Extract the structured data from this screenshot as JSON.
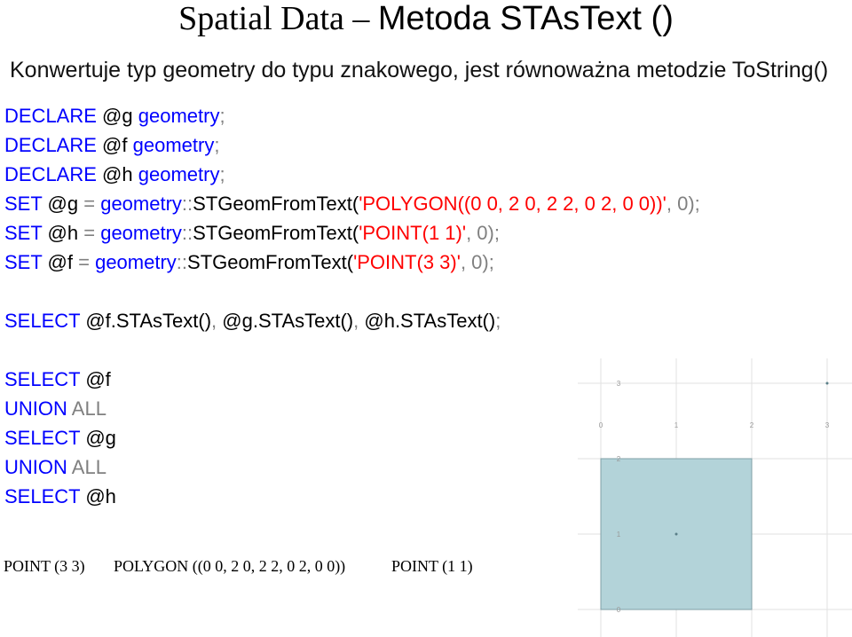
{
  "slide": {
    "title_part1": "Spatial Data – ",
    "title_part2": "Metoda STAsText ()",
    "subtitle": "Konwertuje typ geometry do typu znakowego, jest równoważna metodzie ToString()"
  },
  "code": {
    "line1": {
      "kw": "DECLARE",
      "var": "@g",
      "type": "geometry",
      "end": ";"
    },
    "line2": {
      "kw": "DECLARE",
      "var": "@f",
      "type": "geometry",
      "end": ";"
    },
    "line3": {
      "kw": "DECLARE",
      "var": "@h",
      "type": "geometry",
      "end": ";"
    },
    "line4": {
      "kw": "SET",
      "var": "@g",
      "eq": "=",
      "type": "geometry",
      "sep": "::",
      "method": "STGeomFromText(",
      "wkt": "'POLYGON((0 0, 2 0, 2 2, 0 2, 0 0))'",
      "rest": ", 0);"
    },
    "line5": {
      "kw": "SET",
      "var": "@h",
      "eq": "=",
      "type": "geometry",
      "sep": "::",
      "method": "STGeomFromText(",
      "wkt": "'POINT(1 1)'",
      "rest": ", 0);"
    },
    "line6": {
      "kw": "SET",
      "var": "@f",
      "eq": "=",
      "type": "geometry",
      "sep": "::",
      "method": "STGeomFromText(",
      "wkt": "'POINT(3 3)'",
      "rest": ", 0);"
    },
    "line7": {
      "kw": "SELECT",
      "a": "@f.STAsText()",
      "c1": ",",
      "b": "@g.STAsText()",
      "c2": ",",
      "c": "@h.STAsText()",
      "end": ";"
    },
    "union": [
      {
        "kw": "SELECT",
        "var": "@f"
      },
      {
        "kw": "UNION",
        "op": "ALL"
      },
      {
        "kw": "SELECT",
        "var": "@g"
      },
      {
        "kw": "UNION",
        "op": "ALL"
      },
      {
        "kw": "SELECT",
        "var": "@h"
      }
    ]
  },
  "results": {
    "col1": "POINT (3 3)",
    "col2": "POLYGON ((0 0, 2 0, 2 2, 0 2, 0 0))",
    "col3": "POINT (1 1)"
  },
  "spatial_viewer": {
    "x_ticks": [
      "0",
      "1",
      "2",
      "3"
    ],
    "y_ticks": [
      "3",
      "2",
      "1",
      "0"
    ],
    "polygon_fill": "#b3d3d9",
    "polygon_stroke": "#7f9fa6",
    "grid_color": "#e0e0e0"
  }
}
